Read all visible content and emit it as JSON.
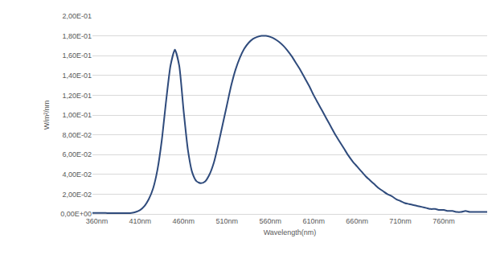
{
  "chart_data": {
    "type": "line",
    "x_label": "Wavelength(nm)",
    "y_label": "W/m²/nm",
    "color": "#2f4b7c",
    "grid": true,
    "x": [
      355,
      360,
      365,
      370,
      375,
      380,
      385,
      390,
      395,
      400,
      405,
      410,
      415,
      420,
      425,
      430,
      435,
      440,
      445,
      450,
      455,
      460,
      465,
      470,
      475,
      480,
      485,
      490,
      495,
      500,
      505,
      510,
      515,
      520,
      525,
      530,
      535,
      540,
      545,
      550,
      555,
      560,
      565,
      570,
      575,
      580,
      585,
      590,
      595,
      600,
      605,
      610,
      615,
      620,
      625,
      630,
      635,
      640,
      645,
      650,
      655,
      660,
      665,
      670,
      675,
      680,
      685,
      690,
      695,
      700,
      705,
      710,
      715,
      720,
      725,
      730,
      735,
      740,
      745,
      750,
      755,
      760,
      765,
      770,
      775,
      780,
      785,
      790,
      795,
      800,
      805,
      810
    ],
    "values": [
      0.001,
      0.001,
      0.001,
      0.001,
      0.0008,
      0.0008,
      0.0008,
      0.0008,
      0.0008,
      0.001,
      0.002,
      0.004,
      0.008,
      0.015,
      0.026,
      0.045,
      0.075,
      0.115,
      0.15,
      0.166,
      0.15,
      0.105,
      0.065,
      0.042,
      0.033,
      0.031,
      0.033,
      0.04,
      0.052,
      0.07,
      0.09,
      0.11,
      0.13,
      0.146,
      0.158,
      0.167,
      0.173,
      0.177,
      0.179,
      0.18,
      0.18,
      0.179,
      0.177,
      0.174,
      0.17,
      0.165,
      0.159,
      0.152,
      0.145,
      0.137,
      0.129,
      0.12,
      0.112,
      0.104,
      0.096,
      0.088,
      0.08,
      0.073,
      0.066,
      0.059,
      0.053,
      0.048,
      0.043,
      0.038,
      0.034,
      0.03,
      0.026,
      0.023,
      0.02,
      0.018,
      0.015,
      0.013,
      0.011,
      0.01,
      0.009,
      0.008,
      0.007,
      0.006,
      0.005,
      0.005,
      0.004,
      0.004,
      0.003,
      0.003,
      0.002,
      0.002,
      0.003,
      0.002,
      0.002,
      0.002,
      0.002,
      0.002
    ],
    "xlim": [
      355,
      810
    ],
    "xticks": [
      {
        "value": 360,
        "label": "360nm"
      },
      {
        "value": 410,
        "label": "410nm"
      },
      {
        "value": 460,
        "label": "460nm"
      },
      {
        "value": 510,
        "label": "510nm"
      },
      {
        "value": 560,
        "label": "560nm"
      },
      {
        "value": 610,
        "label": "610nm"
      },
      {
        "value": 660,
        "label": "660nm"
      },
      {
        "value": 710,
        "label": "710nm"
      },
      {
        "value": 760,
        "label": "760nm"
      }
    ],
    "ylim": [
      0,
      0.2
    ],
    "yticks": [
      {
        "value": 0,
        "label": "0,00E+00"
      },
      {
        "value": 0.02,
        "label": "2,00E-02"
      },
      {
        "value": 0.04,
        "label": "4,00E-02"
      },
      {
        "value": 0.06,
        "label": "6,00E-02"
      },
      {
        "value": 0.08,
        "label": "8,00E-02"
      },
      {
        "value": 0.1,
        "label": "1,00E-01"
      },
      {
        "value": 0.12,
        "label": "1,20E-01"
      },
      {
        "value": 0.14,
        "label": "1,40E-01"
      },
      {
        "value": 0.16,
        "label": "1,60E-01"
      },
      {
        "value": 0.18,
        "label": "1,80E-01"
      },
      {
        "value": 0.2,
        "label": "2,00E-01"
      }
    ]
  }
}
